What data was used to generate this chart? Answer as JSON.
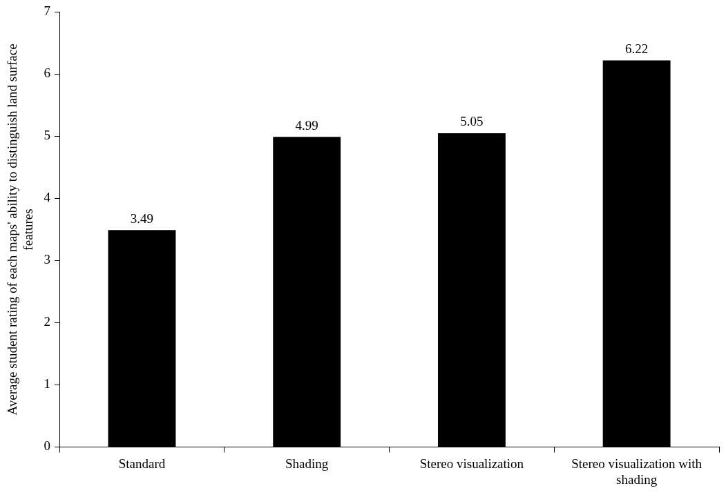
{
  "chart_data": {
    "type": "bar",
    "ylabel": "Average student rating of each maps' ability to distinguish land surface features",
    "categories": [
      "Standard",
      "Shading",
      "Stereo visualization",
      "Stereo visualization with shading"
    ],
    "values": [
      3.49,
      4.99,
      5.05,
      6.22
    ],
    "color": "#000000",
    "ylim": [
      0,
      7
    ],
    "yticks": [
      0,
      1,
      2,
      3,
      4,
      5,
      6,
      7
    ],
    "grid": false,
    "legend": false,
    "data_labels": true
  }
}
